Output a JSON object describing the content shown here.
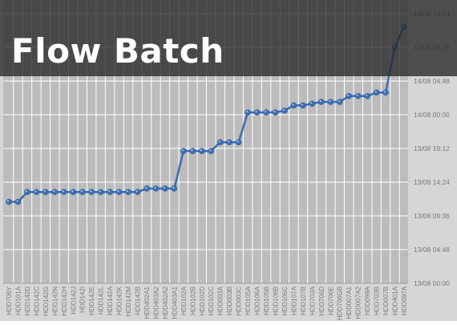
{
  "header": {
    "title": "Flow Batch"
  },
  "colors": {
    "background": "#d6d6d6",
    "plot_area": "#bcbcbc",
    "grid": "#ffffff",
    "line": "#3f6fb0",
    "marker": "#3d6fba",
    "marker_highlight": "#a9c4ea",
    "axis_text": "#7a7a7a",
    "title_band": "#282828",
    "title_text": "#ffffff"
  },
  "chart_data": {
    "type": "line",
    "title": "Flow Batch",
    "xlabel": "",
    "ylabel": "",
    "grid": true,
    "legend": "none",
    "y_axis_position": "right",
    "x_labels_rotation": "vertical",
    "categories": [
      "HDD706Y",
      "HDD101A",
      "HDD142D",
      "HDD142C",
      "HDD142G",
      "HDD142N",
      "HDD142H",
      "HDD142J",
      "HDD142I",
      "HDD142E",
      "HDD142L",
      "HDD142A",
      "HDD142K",
      "HDD142M",
      "HDD142B",
      "HDD402A1",
      "HDD403A2",
      "HDD402A2",
      "HDD403A1",
      "HDD102A",
      "HDD102B",
      "HDD102D",
      "HDD102C",
      "HDD003A",
      "HDD003B",
      "HDD003C",
      "HDD105A",
      "HDD106A",
      "HDD105B",
      "HDD106B",
      "HDD106C",
      "HDD107A",
      "HDD107B",
      "HDD703A",
      "HDD706D",
      "HDD706E",
      "HDD706GB",
      "HDD007A1",
      "HDD007A2",
      "HDD099A",
      "HDD703B",
      "HDD007B",
      "HDD401A",
      "HDD097A"
    ],
    "y_ticks": [
      "13/08 00:00",
      "13/08 04:48",
      "13/08 09:36",
      "13/08 14:24",
      "13/08 19:12",
      "14/08 00:00",
      "14/08 04:48",
      "14/08 09:36",
      "14/08 14:24"
    ],
    "ylim": [
      "13/08 00:00",
      "14/08 14:24"
    ],
    "values": [
      "13/08 11:36",
      "13/08 11:36",
      "13/08 13:00",
      "13/08 13:00",
      "13/08 13:00",
      "13/08 13:00",
      "13/08 13:00",
      "13/08 13:00",
      "13/08 13:00",
      "13/08 13:00",
      "13/08 13:00",
      "13/08 13:00",
      "13/08 13:00",
      "13/08 13:00",
      "13/08 13:00",
      "13/08 13:30",
      "13/08 13:30",
      "13/08 13:30",
      "13/08 13:30",
      "13/08 18:50",
      "13/08 18:50",
      "13/08 18:50",
      "13/08 18:50",
      "13/08 20:05",
      "13/08 20:05",
      "13/08 20:05",
      "14/08 00:20",
      "14/08 00:20",
      "14/08 00:20",
      "14/08 00:20",
      "14/08 00:35",
      "14/08 01:20",
      "14/08 01:20",
      "14/08 01:35",
      "14/08 01:50",
      "14/08 01:50",
      "14/08 01:50",
      "14/08 02:40",
      "14/08 02:40",
      "14/08 02:40",
      "14/08 03:10",
      "14/08 03:10",
      "14/08 09:40",
      "14/08 12:30"
    ]
  }
}
